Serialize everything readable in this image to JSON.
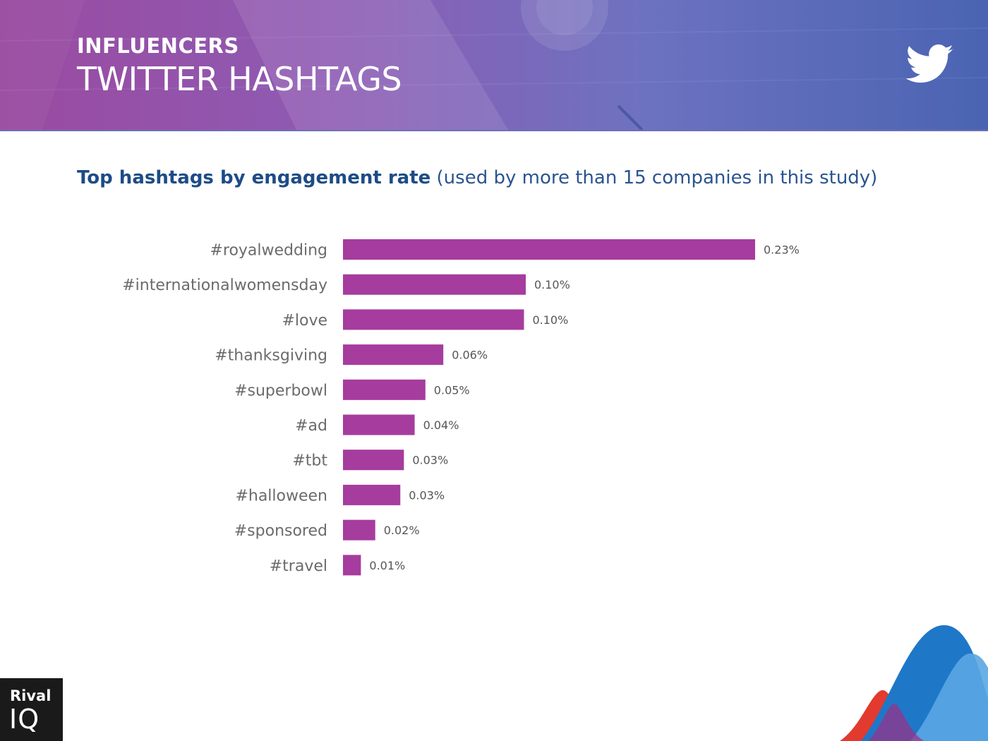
{
  "header": {
    "kicker": "INFLUENCERS",
    "title": "TWITTER HASHTAGS",
    "icon": "twitter-bird-icon"
  },
  "chart_heading": {
    "strong": "Top hashtags by engagement rate",
    "normal": " (used by more than 15 companies in this study)"
  },
  "chart_data": {
    "type": "bar",
    "orientation": "horizontal",
    "title": "Top hashtags by engagement rate (used by more than 15 companies in this study)",
    "categories": [
      "#royalwedding",
      "#internationalwomensday",
      "#love",
      "#thanksgiving",
      "#superbowl",
      "#ad",
      "#tbt",
      "#halloween",
      "#sponsored",
      "#travel"
    ],
    "values": [
      0.23,
      0.102,
      0.101,
      0.056,
      0.046,
      0.04,
      0.034,
      0.032,
      0.018,
      0.01
    ],
    "labels": [
      "0.23%",
      "0.10%",
      "0.10%",
      "0.06%",
      "0.05%",
      "0.04%",
      "0.03%",
      "0.03%",
      "0.02%",
      "0.01%"
    ],
    "unit": "%",
    "xlim": [
      0,
      0.23
    ],
    "grid": false,
    "legend": "none",
    "bar_color": "#a63c9e"
  },
  "logo": {
    "top": "Rival",
    "bottom": "IQ"
  },
  "colors": {
    "label_text": "#6b6b6b",
    "value_text": "#555555",
    "heading_blue": "#1d4c86"
  }
}
